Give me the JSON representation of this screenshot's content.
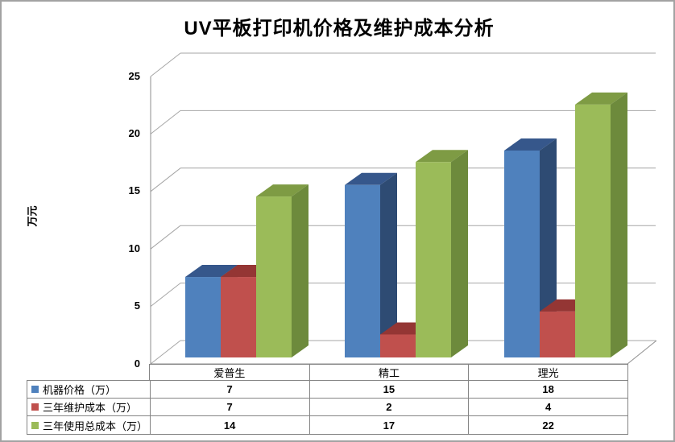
{
  "title": "UV平板打印机价格及维护成本分析",
  "y_axis": {
    "label": "万元",
    "ticks": [
      "0",
      "5",
      "10",
      "15",
      "20",
      "25"
    ]
  },
  "chart_data": {
    "type": "bar",
    "subtype": "3d-clustered-column",
    "title": "UV平板打印机价格及维护成本分析",
    "xlabel": "",
    "ylabel": "万元",
    "ylim": [
      0,
      25
    ],
    "ytick_interval": 5,
    "grid": true,
    "legend_position": "table-left",
    "categories": [
      "爱普生",
      "精工",
      "理光"
    ],
    "series": [
      {
        "name": "机器价格（万）",
        "values": [
          7,
          15,
          18
        ],
        "color": "#4F81BD",
        "top_color": "#36578B",
        "side_color": "#2E4B73"
      },
      {
        "name": "三年维护成本（万）",
        "values": [
          7,
          2,
          4
        ],
        "color": "#C0504D",
        "top_color": "#943634",
        "side_color": "#7F2D2B"
      },
      {
        "name": "三年使用总成本（万）",
        "values": [
          14,
          17,
          22
        ],
        "color": "#9BBB59",
        "top_color": "#7E9B44",
        "side_color": "#6D8A3C"
      }
    ]
  },
  "colors": {
    "gridline": "#A6A6A6",
    "axis": "#8E8E8E",
    "table_border": "#848484"
  }
}
